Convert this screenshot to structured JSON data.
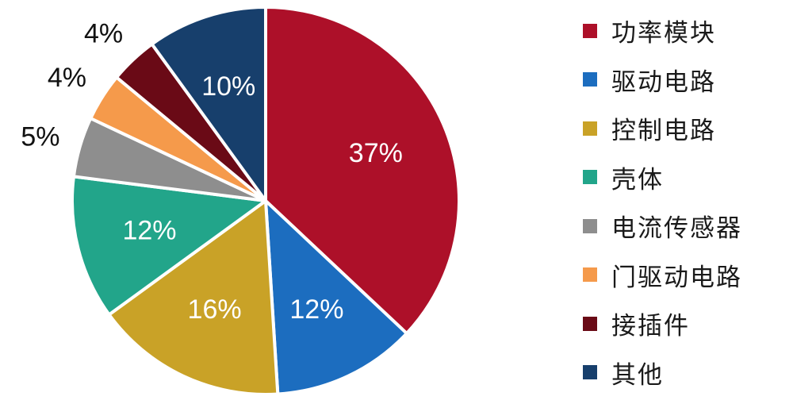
{
  "chart_data": {
    "type": "pie",
    "title": "",
    "categories": [
      "功率模块",
      "驱动电路",
      "控制电路",
      "壳体",
      "电流传感器",
      "门驱动电路",
      "接插件",
      "其他"
    ],
    "values": [
      37,
      12,
      16,
      12,
      5,
      4,
      4,
      10
    ],
    "labels": [
      "37%",
      "12%",
      "16%",
      "12%",
      "5%",
      "4%",
      "4%",
      "10%"
    ],
    "colors": [
      "#ad1029",
      "#1c6dbf",
      "#c9a227",
      "#22a58a",
      "#8e8e8e",
      "#f59a4b",
      "#6a0a16",
      "#173f6c"
    ],
    "start_angle_deg": 0,
    "direction": "clockwise",
    "label_position": [
      "inside",
      "inside",
      "inside",
      "inside",
      "outside",
      "outside",
      "outside",
      "inside"
    ],
    "legend_position": "right"
  }
}
